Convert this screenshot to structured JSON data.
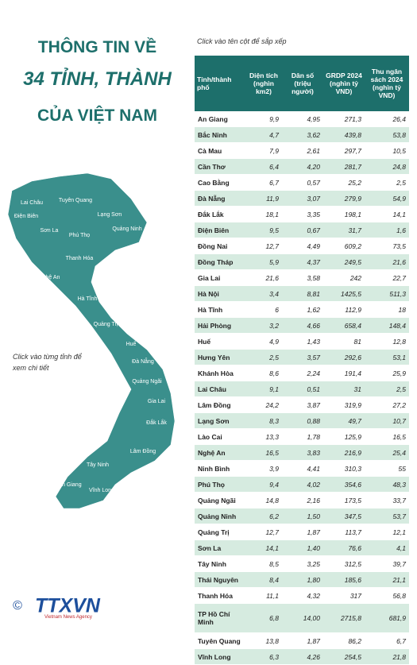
{
  "title": {
    "line1": "THÔNG TIN VỀ",
    "line2": "34 TỈNH, THÀNH",
    "line3": "CỦA VIỆT NAM"
  },
  "sort_hint": "Click vào tên cột để sắp xếp",
  "map_hint": "Click vào từng tỉnh để xem chi tiết",
  "logo": {
    "copyright": "©",
    "name": "TTXVN",
    "tagline": "Vietnam News Agency"
  },
  "map_labels": [
    "Lai Châu",
    "Điện Biên",
    "Sơn La",
    "Tuyên Quang",
    "Lạng Sơn",
    "Quảng Ninh",
    "Phú Thọ",
    "Thanh Hóa",
    "Nghệ An",
    "Hà Tĩnh",
    "Quảng Trị",
    "Huế",
    "Đà Nẵng",
    "Quảng Ngãi",
    "Gia Lai",
    "Đắk Lắk",
    "Lâm Đồng",
    "Tây Ninh",
    "An Giang",
    "Vĩnh Long"
  ],
  "table": {
    "header": [
      "Tỉnh/thành phố",
      "Diện tích (nghìn km2)",
      "Dân số (triệu người)",
      "GRDP 2024 (nghìn tỷ VND)",
      "Thu ngân sách 2024 (nghìn tỷ VND)"
    ],
    "rows": [
      [
        "An Giang",
        "9,9",
        "4,95",
        "271,3",
        "26,4"
      ],
      [
        "Bắc Ninh",
        "4,7",
        "3,62",
        "439,8",
        "53,8"
      ],
      [
        "Cà Mau",
        "7,9",
        "2,61",
        "297,7",
        "10,5"
      ],
      [
        "Cần Thơ",
        "6,4",
        "4,20",
        "281,7",
        "24,8"
      ],
      [
        "Cao Bằng",
        "6,7",
        "0,57",
        "25,2",
        "2,5"
      ],
      [
        "Đà Nẵng",
        "11,9",
        "3,07",
        "279,9",
        "54,9"
      ],
      [
        "Đắk Lắk",
        "18,1",
        "3,35",
        "198,1",
        "14,1"
      ],
      [
        "Điện Biên",
        "9,5",
        "0,67",
        "31,7",
        "1,6"
      ],
      [
        "Đồng Nai",
        "12,7",
        "4,49",
        "609,2",
        "73,5"
      ],
      [
        "Đồng Tháp",
        "5,9",
        "4,37",
        "249,5",
        "21,6"
      ],
      [
        "Gia Lai",
        "21,6",
        "3,58",
        "242",
        "22,7"
      ],
      [
        "Hà Nội",
        "3,4",
        "8,81",
        "1425,5",
        "511,3"
      ],
      [
        "Hà Tĩnh",
        "6",
        "1,62",
        "112,9",
        "18"
      ],
      [
        "Hải Phòng",
        "3,2",
        "4,66",
        "658,4",
        "148,4"
      ],
      [
        "Huế",
        "4,9",
        "1,43",
        "81",
        "12,8"
      ],
      [
        "Hưng Yên",
        "2,5",
        "3,57",
        "292,6",
        "53,1"
      ],
      [
        "Khánh Hòa",
        "8,6",
        "2,24",
        "191,4",
        "25,9"
      ],
      [
        "Lai Châu",
        "9,1",
        "0,51",
        "31",
        "2,5"
      ],
      [
        "Lâm Đồng",
        "24,2",
        "3,87",
        "319,9",
        "27,2"
      ],
      [
        "Lạng Sơn",
        "8,3",
        "0,88",
        "49,7",
        "10,7"
      ],
      [
        "Lào Cai",
        "13,3",
        "1,78",
        "125,9",
        "16,5"
      ],
      [
        "Nghệ An",
        "16,5",
        "3,83",
        "216,9",
        "25,4"
      ],
      [
        "Ninh Bình",
        "3,9",
        "4,41",
        "310,3",
        "55"
      ],
      [
        "Phú Thọ",
        "9,4",
        "4,02",
        "354,6",
        "48,3"
      ],
      [
        "Quảng Ngãi",
        "14,8",
        "2,16",
        "173,5",
        "33,7"
      ],
      [
        "Quảng Ninh",
        "6,2",
        "1,50",
        "347,5",
        "53,7"
      ],
      [
        "Quảng Trị",
        "12,7",
        "1,87",
        "113,7",
        "12,1"
      ],
      [
        "Sơn La",
        "14,1",
        "1,40",
        "76,6",
        "4,1"
      ],
      [
        "Tây Ninh",
        "8,5",
        "3,25",
        "312,5",
        "39,7"
      ],
      [
        "Thái Nguyên",
        "8,4",
        "1,80",
        "185,6",
        "21,1"
      ],
      [
        "Thanh Hóa",
        "11,1",
        "4,32",
        "317",
        "56,8"
      ],
      [
        "TP Hồ Chí Minh",
        "6,8",
        "14,00",
        "2715,8",
        "681,9"
      ],
      [
        "Tuyên Quang",
        "13,8",
        "1,87",
        "86,2",
        "6,7"
      ],
      [
        "Vĩnh Long",
        "6,3",
        "4,26",
        "254,5",
        "21,8"
      ]
    ]
  }
}
